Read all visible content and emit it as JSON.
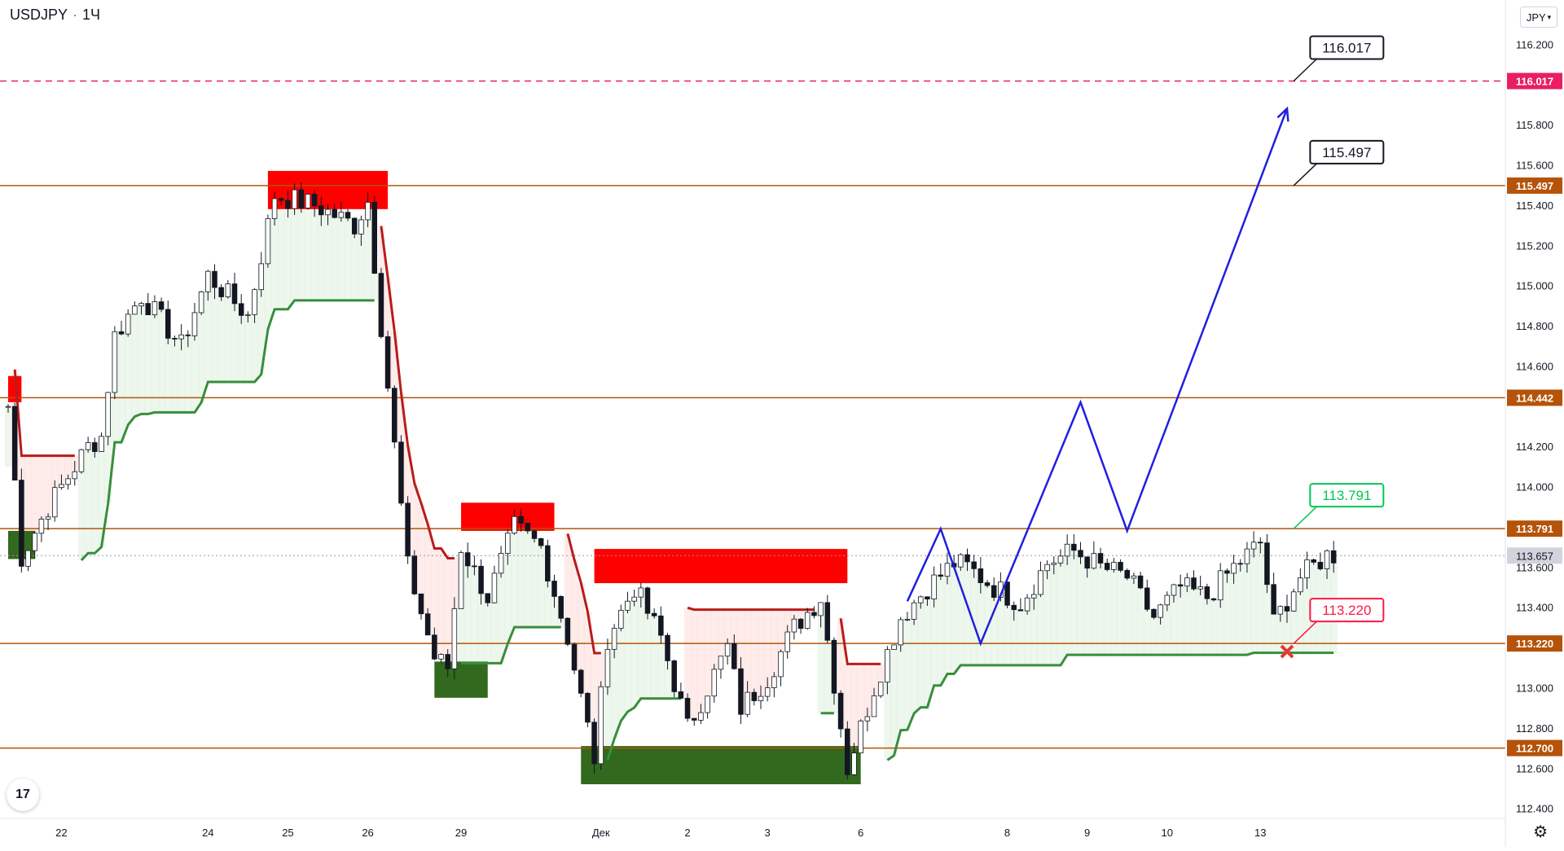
{
  "header": {
    "symbol": "USDJPY",
    "interval": "1Ч"
  },
  "currency_button": "JPY",
  "logo_text": "17",
  "settings_icon": "gear-icon",
  "chart_data": {
    "type": "candlestick",
    "symbol": "USDJPY",
    "timeframe": "1Ч",
    "ylim": [
      112.35,
      116.42
    ],
    "y_ticks": [
      "116.200",
      "115.800",
      "115.600",
      "115.400",
      "115.200",
      "115.000",
      "114.800",
      "114.600",
      "114.200",
      "114.000",
      "113.600",
      "113.400",
      "113.000",
      "112.800",
      "112.600",
      "112.400"
    ],
    "x_ticks": [
      "22",
      "24",
      "25",
      "26",
      "29",
      "Дек",
      "2",
      "3",
      "6",
      "8",
      "9",
      "10",
      "13"
    ],
    "x_tick_index": [
      8,
      30,
      42,
      54,
      68,
      89,
      102,
      114,
      128,
      150,
      162,
      174,
      188
    ],
    "bar_count": 200,
    "last_price": {
      "value": 113.657,
      "label": "113.657"
    },
    "grid": false,
    "horizontal_levels": [
      {
        "value": 116.017,
        "label": "116.017",
        "style": "dashed",
        "color": "#e91e63"
      },
      {
        "value": 115.497,
        "label": "115.497",
        "style": "solid",
        "color": "#b45309"
      },
      {
        "value": 114.442,
        "label": "114.442",
        "style": "solid",
        "color": "#b45309"
      },
      {
        "value": 113.791,
        "label": "113.791",
        "style": "solid",
        "color": "#b45309"
      },
      {
        "value": 113.22,
        "label": "113.220",
        "style": "solid",
        "color": "#b45309"
      },
      {
        "value": 112.7,
        "label": "112.700",
        "style": "solid",
        "color": "#b45309"
      }
    ],
    "callouts": [
      {
        "label": "116.017",
        "value": 116.017,
        "color": "#131722"
      },
      {
        "label": "115.497",
        "value": 115.497,
        "color": "#131722"
      },
      {
        "label": "113.791",
        "value": 113.791,
        "color": "#00c853"
      },
      {
        "label": "113.220",
        "value": 113.22,
        "color": "#ff1744"
      }
    ],
    "zones": [
      {
        "kind": "supply",
        "i0": 39,
        "i1": 57,
        "y0": 115.38,
        "y1": 115.57
      },
      {
        "kind": "supply",
        "i0": 68,
        "i1": 82,
        "y0": 113.78,
        "y1": 113.92
      },
      {
        "kind": "supply",
        "i0": 88,
        "i1": 126,
        "y0": 113.52,
        "y1": 113.69
      },
      {
        "kind": "supply",
        "i0": 0,
        "i1": 2,
        "y0": 114.42,
        "y1": 114.55
      },
      {
        "kind": "demand",
        "i0": 0,
        "i1": 4,
        "y0": 113.64,
        "y1": 113.78
      },
      {
        "kind": "demand",
        "i0": 64,
        "i1": 72,
        "y0": 112.95,
        "y1": 113.13
      },
      {
        "kind": "demand",
        "i0": 86,
        "i1": 128,
        "y0": 112.52,
        "y1": 112.71
      }
    ],
    "forecast_path": [
      [
        135,
        113.43
      ],
      [
        140,
        113.79
      ],
      [
        146,
        113.22
      ],
      [
        161,
        114.42
      ],
      [
        168,
        113.78
      ],
      [
        192,
        115.88
      ]
    ],
    "target_marker": {
      "label": "stop",
      "i": 192,
      "value": 113.18
    }
  }
}
